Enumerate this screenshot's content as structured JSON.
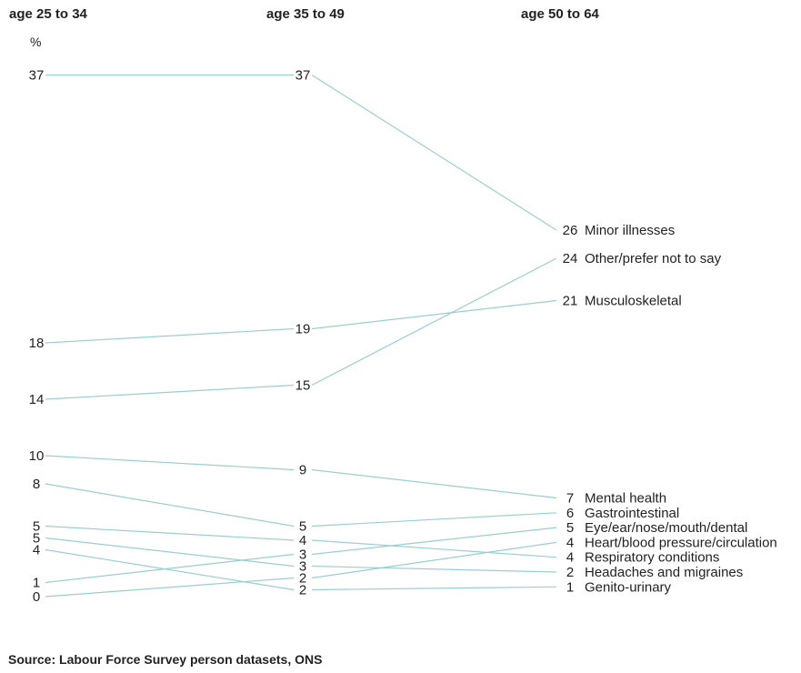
{
  "chart_data": {
    "type": "line",
    "categories": [
      "age 25 to 34",
      "age 35 to 49",
      "age 50 to 64"
    ],
    "unit": "%",
    "series": [
      {
        "name": "Minor illnesses",
        "values": [
          37,
          37,
          26
        ],
        "labels": [
          "37",
          "37",
          "26"
        ]
      },
      {
        "name": "Other/prefer not to say",
        "values": [
          14,
          15,
          24
        ],
        "labels": [
          "14",
          "15",
          "24"
        ]
      },
      {
        "name": "Musculoskeletal",
        "values": [
          18,
          19,
          21
        ],
        "labels": [
          "18",
          "19",
          "21"
        ]
      },
      {
        "name": "Mental health",
        "values": [
          10,
          9,
          7
        ],
        "labels": [
          "10",
          "9",
          "7"
        ]
      },
      {
        "name": "Gastrointestinal",
        "values": [
          8,
          5,
          6
        ],
        "labels": [
          "8",
          "5",
          "6"
        ]
      },
      {
        "name": "Eye/ear/nose/mouth/dental",
        "values": [
          1,
          3,
          5
        ],
        "labels": [
          "1",
          "3",
          "5"
        ]
      },
      {
        "name": "Heart/blood pressure/circulation",
        "values": [
          0,
          2,
          4
        ],
        "labels": [
          "0",
          "2",
          "4"
        ]
      },
      {
        "name": "Respiratory conditions",
        "values": [
          5,
          4,
          4
        ],
        "labels": [
          "5",
          "4",
          "4"
        ]
      },
      {
        "name": "Headaches and migraines",
        "values": [
          5,
          3,
          2
        ],
        "labels": [
          "5",
          "3",
          "2"
        ]
      },
      {
        "name": "Genito-urinary",
        "values": [
          4,
          2,
          1
        ],
        "labels": [
          "4",
          "2",
          "1"
        ]
      }
    ],
    "line_color": "#99cfd0"
  },
  "source": "Source: Labour Force Survey person datasets, ONS"
}
